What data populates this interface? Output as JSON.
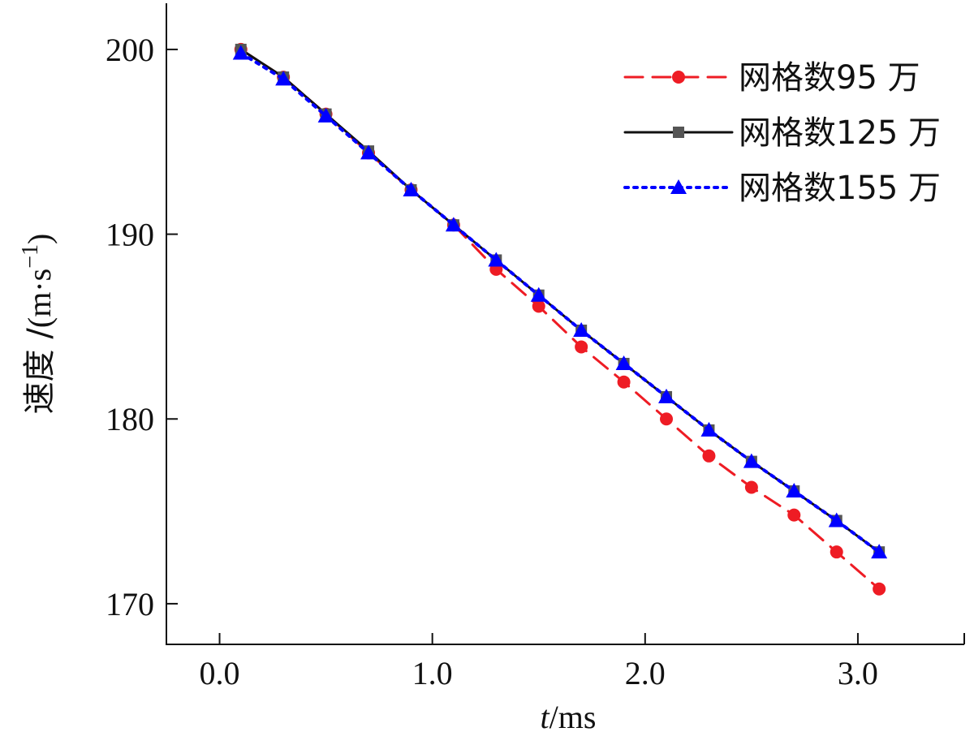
{
  "chart_data": {
    "type": "line",
    "title": "",
    "xlabel_italic": "t",
    "xlabel_rest": "/ms",
    "ylabel_main": "速度 /",
    "ylabel_unit": "(m·s",
    "ylabel_sup": "−1",
    "ylabel_close": ")",
    "xlim": [
      -0.25,
      3.5
    ],
    "ylim": [
      167.8,
      202.5
    ],
    "xticks": [
      0.0,
      1.0,
      2.0,
      3.0
    ],
    "xtick_labels": [
      "0.0",
      "1.0",
      "2.0",
      "3.0"
    ],
    "yticks": [
      170,
      180,
      190,
      200
    ],
    "ytick_labels": [
      "170",
      "180",
      "190",
      "200"
    ],
    "grid": false,
    "legend_position": "top-right",
    "x": [
      0.1,
      0.3,
      0.5,
      0.7,
      0.9,
      1.1,
      1.3,
      1.5,
      1.7,
      1.9,
      2.1,
      2.3,
      2.5,
      2.7,
      2.9,
      3.1
    ],
    "series": [
      {
        "name": "网格数95 万",
        "color": "#ee1c24",
        "line_style": "dashed",
        "marker": "circle",
        "values": [
          200.0,
          198.5,
          196.5,
          194.4,
          192.4,
          190.5,
          188.1,
          186.1,
          183.9,
          182.0,
          180.0,
          178.0,
          176.3,
          174.8,
          172.8,
          170.8
        ]
      },
      {
        "name": "网格数125 万",
        "color": "#111111",
        "line_style": "solid",
        "marker": "square",
        "values": [
          200.0,
          198.5,
          196.5,
          194.5,
          192.4,
          190.5,
          188.6,
          186.7,
          184.8,
          183.0,
          181.2,
          179.4,
          177.7,
          176.1,
          174.5,
          172.8
        ]
      },
      {
        "name": "网格数155 万",
        "color": "#0000ff",
        "line_style": "dotted",
        "marker": "triangle",
        "values": [
          199.8,
          198.4,
          196.4,
          194.4,
          192.4,
          190.5,
          188.6,
          186.7,
          184.8,
          183.0,
          181.2,
          179.4,
          177.7,
          176.1,
          174.5,
          172.8
        ]
      }
    ]
  }
}
